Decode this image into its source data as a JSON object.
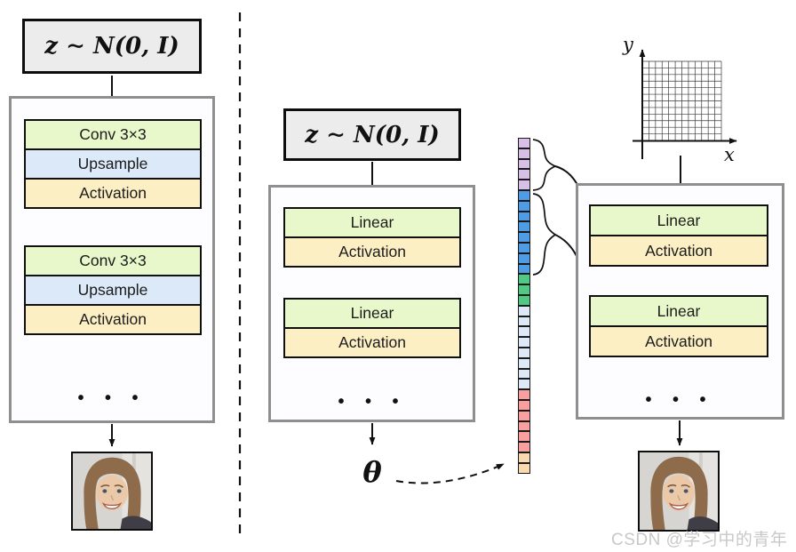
{
  "left_pipeline": {
    "latent": "z ∼ N(0, I)",
    "conv": "Conv 3×3",
    "upsample": "Upsample",
    "activation": "Activation",
    "dots": "• • •",
    "output_image": "young-woman-face-photo"
  },
  "middle_pipeline": {
    "latent": "z ∼ N(0, I)",
    "linear": "Linear",
    "activation": "Activation",
    "dots": "• • •",
    "theta": "θ"
  },
  "right_pipeline": {
    "linear": "Linear",
    "activation": "Activation",
    "dots": "• • •",
    "axis_x": "x",
    "axis_y": "y",
    "grid": {
      "cols": 12,
      "rows": 12
    },
    "output_image": "young-woman-face-photo"
  },
  "param_vector": {
    "segments": [
      {
        "name": "lavender",
        "color": "#d7bfe6",
        "cells": 5
      },
      {
        "name": "blue",
        "color": "#4f9ce4",
        "cells": 8
      },
      {
        "name": "green",
        "color": "#4fc984",
        "cells": 3
      },
      {
        "name": "light-blue",
        "color": "#dde9f6",
        "cells": 8
      },
      {
        "name": "salmon",
        "color": "#f99f9f",
        "cells": 6
      },
      {
        "name": "peach",
        "color": "#f8d9b0",
        "cells": 2
      }
    ]
  },
  "colors": {
    "block_green": "#e9f8ca",
    "block_blue": "#dbe9f8",
    "block_cream": "#fdefc4",
    "latent_bg": "#ececec",
    "container_bg": "#fdfcfe",
    "container_border": "#8f8f8f",
    "watermark": "#c8c8c8"
  },
  "watermark": "CSDN @学习中的青年"
}
